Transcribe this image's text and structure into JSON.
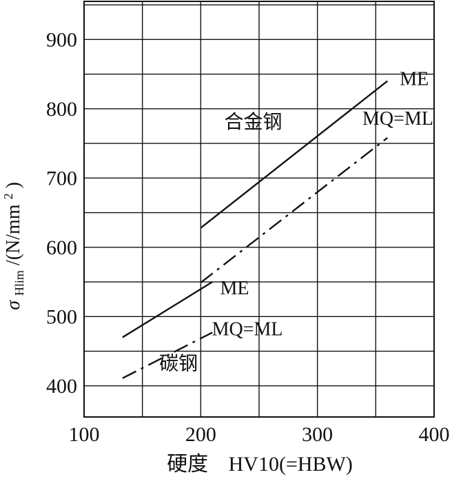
{
  "chart_data": {
    "type": "line",
    "title": "",
    "xlabel": {
      "prefix": "硬度",
      "unit": "HV10(=HBW)"
    },
    "ylabel": {
      "symbol": "σ",
      "subscript": "Hlim",
      "unit_prefix": "/(N/mm",
      "unit_power": "2",
      "unit_suffix": ")"
    },
    "xlim": [
      100,
      400
    ],
    "ylim": [
      355,
      955
    ],
    "x_ticks": [
      100,
      200,
      300,
      400
    ],
    "y_ticks": [
      400,
      500,
      600,
      700,
      800,
      900
    ],
    "x_grid": [
      100,
      150,
      200,
      250,
      300,
      350,
      400
    ],
    "y_grid": [
      400,
      450,
      500,
      550,
      600,
      650,
      700,
      750,
      800,
      850,
      900,
      950
    ],
    "grid": true,
    "series": [
      {
        "name": "ME",
        "group": "合金钢",
        "style": "solid",
        "points": [
          [
            200,
            628
          ],
          [
            360,
            840
          ]
        ]
      },
      {
        "name": "MQ=ML",
        "group": "合金钢",
        "style": "dash-dot",
        "points": [
          [
            200,
            549
          ],
          [
            360,
            758
          ]
        ]
      },
      {
        "name": "ME",
        "group": "碳钢",
        "style": "solid",
        "points": [
          [
            133,
            470
          ],
          [
            210,
            550
          ]
        ]
      },
      {
        "name": "MQ=ML",
        "group": "碳钢",
        "style": "dash-dot",
        "points": [
          [
            133,
            411
          ],
          [
            210,
            477
          ]
        ]
      }
    ],
    "annotations": [
      {
        "text": "ME",
        "x": 383,
        "y": 834,
        "anchor": "middle"
      },
      {
        "text": "MQ=ML",
        "x": 369,
        "y": 777,
        "anchor": "middle"
      },
      {
        "text": "合金钢",
        "x": 245,
        "y": 772,
        "anchor": "middle"
      },
      {
        "text": "ME",
        "x": 229,
        "y": 532,
        "anchor": "middle"
      },
      {
        "text": "MQ=ML",
        "x": 240,
        "y": 473,
        "anchor": "middle"
      },
      {
        "text": "碳钢",
        "x": 181,
        "y": 423,
        "anchor": "middle"
      }
    ]
  }
}
